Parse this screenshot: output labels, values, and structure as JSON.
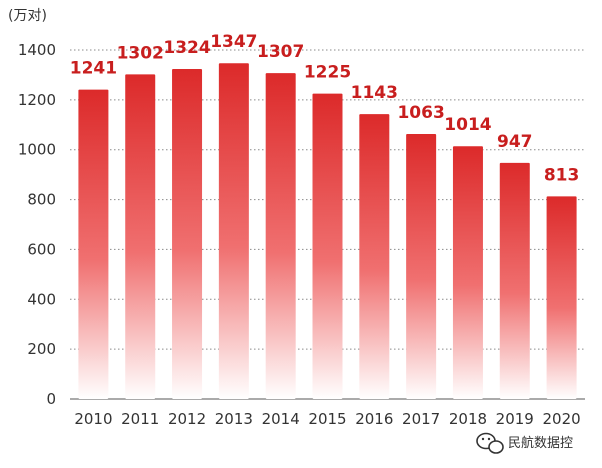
{
  "chart_data": {
    "type": "bar",
    "unit_label": "(万对)",
    "categories": [
      "2010",
      "2011",
      "2012",
      "2013",
      "2014",
      "2015",
      "2016",
      "2017",
      "2018",
      "2019",
      "2020"
    ],
    "values": [
      1241,
      1302,
      1324,
      1347,
      1307,
      1225,
      1143,
      1063,
      1014,
      947,
      813
    ],
    "ylim": [
      0,
      1400
    ],
    "yticks": [
      0,
      200,
      400,
      600,
      800,
      1000,
      1200,
      1400
    ],
    "grid": true,
    "bar_color_top": "#dc2a2a",
    "bar_color_bottom": "#ffffff",
    "data_label_color": "#c81e1e"
  },
  "watermark": {
    "text": "民航数据控",
    "icon": "wechat-icon"
  }
}
